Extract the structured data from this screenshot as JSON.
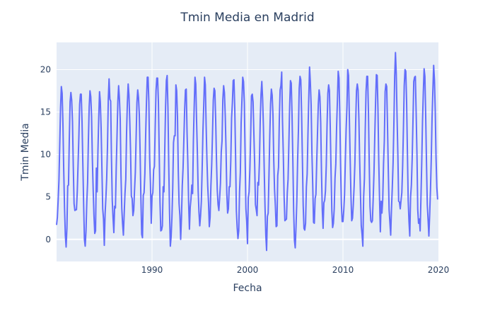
{
  "chart_data": {
    "type": "line",
    "title": "Tmin Media en Madrid",
    "xlabel": "Fecha",
    "ylabel": "Tmin Media",
    "xlim": [
      1980,
      2020
    ],
    "ylim": [
      -2.6,
      23.2
    ],
    "x_ticks": [
      1990,
      2000,
      2010,
      2020
    ],
    "y_ticks": [
      0,
      5,
      10,
      15,
      20
    ],
    "grid": true,
    "legend": "none",
    "colors": {
      "line": "#636efa",
      "plot_bg": "#e5ecf6",
      "grid": "#ffffff",
      "text": "#2a3f5f"
    },
    "series": [
      {
        "x_start": "1980-01",
        "frequency": "monthly",
        "values": [
          1.7,
          2.6,
          4.6,
          7.0,
          11.2,
          15.5,
          18.0,
          17.2,
          13.6,
          8.1,
          3.8,
          0.5,
          -0.9,
          1.3,
          6.3,
          6.4,
          11.8,
          16.2,
          17.3,
          16.4,
          13.9,
          8.6,
          4.2,
          3.4,
          3.5,
          3.5,
          5.6,
          8.8,
          12.0,
          15.9,
          17.1,
          17.1,
          13.9,
          9.0,
          4.3,
          0.0,
          -0.8,
          1.0,
          4.4,
          6.7,
          11.7,
          15.6,
          17.5,
          16.8,
          14.5,
          9.4,
          5.9,
          2.8,
          0.7,
          1.0,
          8.4,
          5.6,
          10.4,
          14.3,
          17.4,
          16.2,
          13.1,
          8.3,
          3.6,
          2.4,
          -0.7,
          3.0,
          4.9,
          7.2,
          10.9,
          16.5,
          18.9,
          16.5,
          16.3,
          9.6,
          4.6,
          2.5,
          0.8,
          3.9,
          3.7,
          8.5,
          12.2,
          16.2,
          18.1,
          16.6,
          14.2,
          7.5,
          3.6,
          1.8,
          0.5,
          3.0,
          5.4,
          7.1,
          12.6,
          16.1,
          18.3,
          17.0,
          14.0,
          10.4,
          5.1,
          4.8,
          2.8,
          3.4,
          5.8,
          7.9,
          12.0,
          16.1,
          17.6,
          16.7,
          14.7,
          10.3,
          4.8,
          0.6,
          0.2,
          5.2,
          5.5,
          7.8,
          12.3,
          16.2,
          19.1,
          19.1,
          16.2,
          9.6,
          6.6,
          1.9,
          5.1,
          5.5,
          8.2,
          8.6,
          13.3,
          17.5,
          19.0,
          19.0,
          16.2,
          10.3,
          4.4,
          1.0,
          1.1,
          1.6,
          6.2,
          5.6,
          10.5,
          15.6,
          18.7,
          19.3,
          15.5,
          8.8,
          3.2,
          -0.8,
          0.3,
          2.6,
          6.0,
          11.4,
          12.2,
          12.2,
          18.2,
          17.5,
          14.4,
          8.0,
          4.2,
          2.8,
          0.0,
          2.5,
          6.3,
          8.4,
          11.8,
          15.3,
          17.6,
          17.7,
          12.6,
          9.0,
          4.3,
          1.2,
          3.8,
          4.8,
          6.4,
          5.4,
          11.7,
          15.7,
          19.1,
          18.3,
          13.9,
          10.2,
          5.7,
          3.2,
          1.6,
          2.8,
          4.5,
          8.3,
          12.8,
          15.8,
          19.1,
          18.2,
          13.4,
          9.4,
          6.3,
          4.3,
          1.5,
          2.6,
          6.3,
          8.8,
          12.4,
          16.4,
          17.8,
          17.5,
          14.1,
          9.4,
          5.8,
          4.1,
          3.4,
          4.9,
          6.6,
          10.3,
          11.6,
          16.5,
          18.1,
          17.3,
          14.6,
          10.7,
          5.4,
          3.1,
          3.6,
          6.2,
          6.2,
          9.3,
          14.3,
          16.1,
          18.7,
          18.8,
          15.4,
          9.9,
          3.4,
          1.4,
          0.1,
          1.0,
          5.6,
          7.9,
          13.7,
          16.4,
          19.1,
          18.6,
          16.1,
          10.0,
          3.6,
          2.1,
          -0.5,
          4.9,
          5.6,
          8.3,
          12.3,
          16.9,
          17.1,
          16.2,
          12.5,
          8.9,
          4.1,
          3.5,
          2.8,
          6.7,
          6.4,
          9.1,
          14.0,
          17.1,
          18.6,
          16.6,
          13.3,
          8.3,
          3.9,
          0.5,
          -1.3,
          2.7,
          3.1,
          7.6,
          12.2,
          16.0,
          17.7,
          17.0,
          14.7,
          9.3,
          5.9,
          4.0,
          1.5,
          1.6,
          7.5,
          8.5,
          14.1,
          17.6,
          18.1,
          19.7,
          13.9,
          10.1,
          5.1,
          2.2,
          2.3,
          2.4,
          5.5,
          7.1,
          11.3,
          15.7,
          18.7,
          18.4,
          14.6,
          9.3,
          3.5,
          -0.1,
          -1.0,
          1.5,
          4.5,
          9.3,
          12.8,
          17.8,
          19.2,
          18.8,
          14.9,
          9.5,
          4.0,
          1.3,
          1.1,
          1.9,
          6.2,
          7.7,
          12.4,
          16.6,
          20.3,
          18.5,
          15.8,
          10.1,
          6.4,
          2.0,
          1.9,
          4.8,
          5.3,
          9.1,
          12.5,
          15.9,
          17.6,
          16.8,
          13.8,
          7.9,
          3.5,
          1.3,
          4.3,
          4.6,
          5.7,
          8.7,
          13.4,
          17.2,
          18.2,
          17.5,
          13.3,
          8.2,
          3.4,
          1.4,
          1.9,
          3.6,
          7.2,
          8.9,
          13.2,
          16.3,
          19.8,
          19.0,
          14.9,
          8.7,
          4.2,
          2.1,
          2.1,
          3.4,
          5.3,
          9.4,
          13.0,
          15.6,
          20.0,
          19.3,
          14.5,
          9.7,
          5.3,
          2.2,
          2.5,
          4.1,
          6.2,
          9.0,
          13.8,
          17.5,
          18.3,
          17.6,
          14.2,
          9.3,
          5.4,
          1.6,
          0.6,
          -0.8,
          5.0,
          7.2,
          12.9,
          17.4,
          19.2,
          19.2,
          15.1,
          9.1,
          3.9,
          2.2,
          2.0,
          2.2,
          4.8,
          7.9,
          12.2,
          16.2,
          19.4,
          19.3,
          15.3,
          9.2,
          4.7,
          0.9,
          4.5,
          3.1,
          4.7,
          8.9,
          11.6,
          17.4,
          18.3,
          18.0,
          13.3,
          8.1,
          3.5,
          2.0,
          0.5,
          3.6,
          6.1,
          9.0,
          13.6,
          19.2,
          22.0,
          19.5,
          14.4,
          10.0,
          4.5,
          4.4,
          3.6,
          4.6,
          5.5,
          8.6,
          13.0,
          18.1,
          20.0,
          19.8,
          16.2,
          10.3,
          4.6,
          2.1,
          0.4,
          5.0,
          6.4,
          9.5,
          13.9,
          18.6,
          19.1,
          19.2,
          14.9,
          10.1,
          3.5,
          1.9,
          2.4,
          1.0,
          4.8,
          9.0,
          13.9,
          17.3,
          20.1,
          19.2,
          14.5,
          9.0,
          4.1,
          2.3,
          0.4,
          2.9,
          5.8,
          9.5,
          14.3,
          17.5,
          20.5,
          18.8,
          15.1,
          9.6,
          6.1,
          4.7
        ]
      }
    ]
  }
}
